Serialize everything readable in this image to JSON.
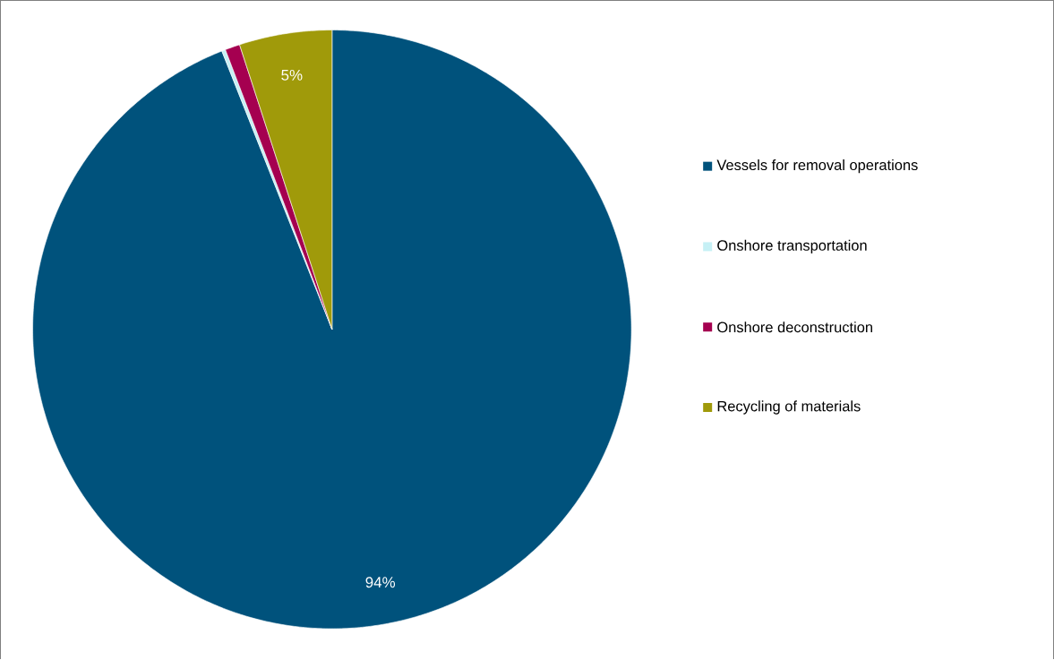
{
  "chart_data": {
    "type": "pie",
    "categories": [
      "Vessels for removal operations",
      "Onshore transportation",
      "Onshore deconstruction",
      "Recycling of materials"
    ],
    "values": [
      94,
      0.2,
      0.8,
      5
    ],
    "value_labels": [
      "94%",
      null,
      null,
      "5%"
    ],
    "colors": [
      "#00527c",
      "#c6f0f5",
      "#a50050",
      "#a09a0a"
    ],
    "legend": "right"
  }
}
